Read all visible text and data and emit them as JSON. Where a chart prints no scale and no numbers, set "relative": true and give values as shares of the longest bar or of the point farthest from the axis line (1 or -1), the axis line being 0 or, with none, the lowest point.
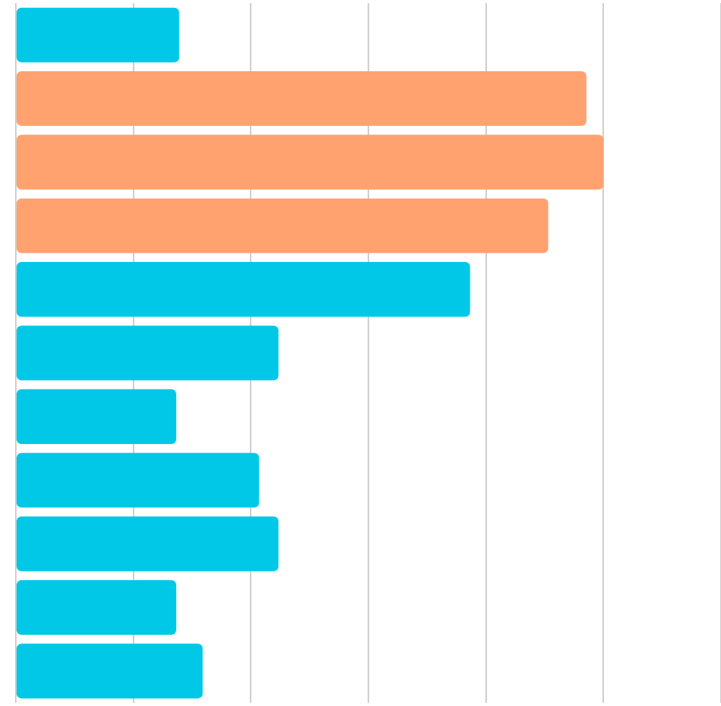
{
  "chart_data": {
    "type": "bar",
    "orientation": "horizontal",
    "relative": true,
    "grid": "x",
    "legend": false,
    "categories": [
      null,
      null,
      null,
      null,
      null,
      null,
      null,
      null,
      null,
      null,
      null
    ],
    "values": [
      0.278,
      0.971,
      1,
      0.906,
      0.773,
      0.447,
      0.273,
      0.414,
      0.447,
      0.273,
      0.318
    ],
    "colors": [
      "#00c8e6",
      "#ffa270",
      "#ffa270",
      "#ffa270",
      "#00c8e6",
      "#00c8e6",
      "#00c8e6",
      "#00c8e6",
      "#00c8e6",
      "#00c8e6",
      "#00c8e6"
    ]
  }
}
